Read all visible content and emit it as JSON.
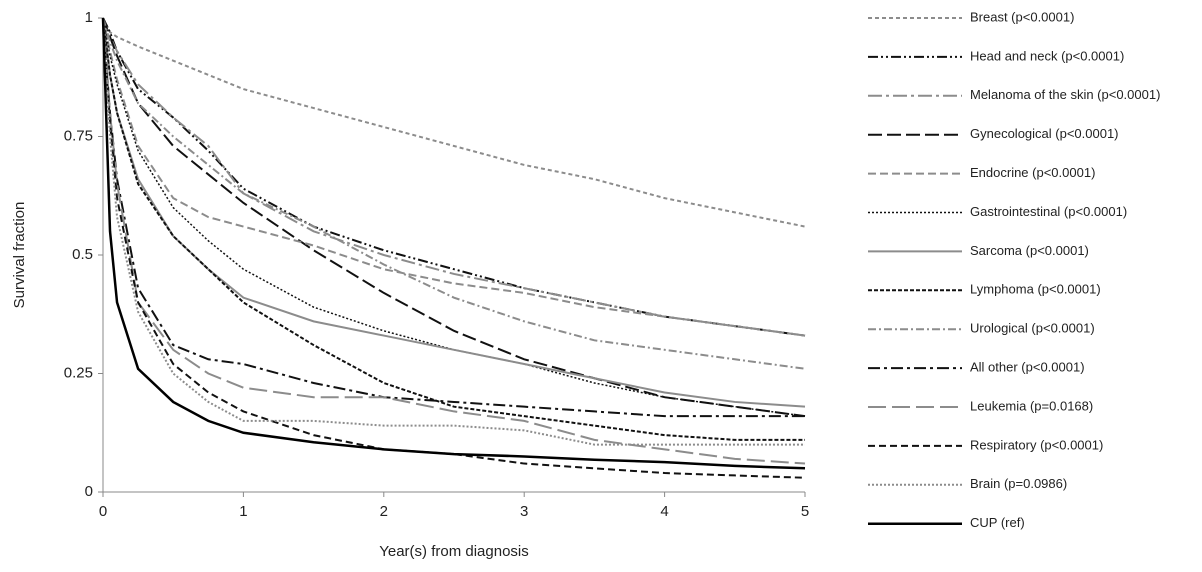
{
  "chart_data": {
    "type": "line",
    "y_label": "Survival fraction",
    "x_label": "Year(s) from diagnosis",
    "xlim": [
      0,
      5
    ],
    "xticks": [
      0,
      1,
      2,
      3,
      4,
      5
    ],
    "ylim": [
      0,
      1
    ],
    "yticks": [
      0,
      0.25,
      0.5,
      0.75,
      1
    ],
    "x": [
      0,
      0.05,
      0.1,
      0.25,
      0.5,
      0.75,
      1,
      1.5,
      2,
      2.5,
      3,
      3.5,
      4,
      4.5,
      5
    ],
    "series": [
      {
        "name": "Breast (p<0.0001)",
        "color": "#8c8c8c",
        "dash": "4 3",
        "width": 2,
        "values": [
          1,
          0.97,
          0.96,
          0.94,
          0.91,
          0.88,
          0.85,
          0.81,
          0.77,
          0.73,
          0.69,
          0.66,
          0.62,
          0.59,
          0.56
        ]
      },
      {
        "name": "Head and neck (p<0.0001)",
        "color": "#111111",
        "dash": "10 3 2 3 2 3",
        "width": 2,
        "values": [
          1,
          0.97,
          0.93,
          0.85,
          0.79,
          0.72,
          0.64,
          0.56,
          0.51,
          0.47,
          0.43,
          0.4,
          0.37,
          0.35,
          0.33
        ]
      },
      {
        "name": "Melanoma of the skin (p<0.0001)",
        "color": "#8c8c8c",
        "dash": "14 4 3 4",
        "width": 2,
        "values": [
          1,
          0.96,
          0.93,
          0.86,
          0.79,
          0.73,
          0.63,
          0.55,
          0.5,
          0.46,
          0.43,
          0.4,
          0.37,
          0.35,
          0.33
        ]
      },
      {
        "name": "Gynecological (p<0.0001)",
        "color": "#111111",
        "dash": "14 5",
        "width": 2,
        "values": [
          1,
          0.96,
          0.92,
          0.82,
          0.73,
          0.67,
          0.61,
          0.51,
          0.42,
          0.34,
          0.28,
          0.24,
          0.2,
          0.18,
          0.16
        ]
      },
      {
        "name": "Endocrine (p<0.0001)",
        "color": "#8c8c8c",
        "dash": "8 4",
        "width": 2,
        "values": [
          1,
          0.93,
          0.87,
          0.73,
          0.62,
          0.58,
          0.56,
          0.52,
          0.47,
          0.44,
          0.42,
          0.39,
          0.37,
          0.35,
          0.33
        ]
      },
      {
        "name": "Gastrointestinal (p<0.0001)",
        "color": "#111111",
        "dash": "2 2",
        "width": 1.5,
        "values": [
          1,
          0.92,
          0.86,
          0.72,
          0.6,
          0.53,
          0.47,
          0.39,
          0.34,
          0.3,
          0.27,
          0.23,
          0.2,
          0.18,
          0.16
        ]
      },
      {
        "name": "Sarcoma (p<0.0001)",
        "color": "#8c8c8c",
        "dash": "none",
        "width": 2,
        "values": [
          1,
          0.88,
          0.8,
          0.66,
          0.54,
          0.47,
          0.41,
          0.36,
          0.33,
          0.3,
          0.27,
          0.24,
          0.21,
          0.19,
          0.18
        ]
      },
      {
        "name": "Lymphoma (p<0.0001)",
        "color": "#111111",
        "dash": "4 2",
        "width": 2,
        "values": [
          1,
          0.88,
          0.8,
          0.65,
          0.54,
          0.47,
          0.4,
          0.31,
          0.23,
          0.18,
          0.16,
          0.14,
          0.12,
          0.11,
          0.11
        ]
      },
      {
        "name": "Urological (p<0.0001)",
        "color": "#8c8c8c",
        "dash": "8 3 2 3",
        "width": 2,
        "values": [
          1,
          0.95,
          0.91,
          0.82,
          0.75,
          0.69,
          0.63,
          0.56,
          0.48,
          0.41,
          0.36,
          0.32,
          0.3,
          0.28,
          0.26
        ]
      },
      {
        "name": "All other (p<0.0001)",
        "color": "#111111",
        "dash": "12 4 3 4",
        "width": 2,
        "values": [
          1,
          0.8,
          0.66,
          0.43,
          0.31,
          0.28,
          0.27,
          0.23,
          0.2,
          0.19,
          0.18,
          0.17,
          0.16,
          0.16,
          0.16
        ]
      },
      {
        "name": "Leukemia (p=0.0168)",
        "color": "#8c8c8c",
        "dash": "18 6",
        "width": 2,
        "values": [
          1,
          0.8,
          0.65,
          0.4,
          0.3,
          0.25,
          0.22,
          0.2,
          0.2,
          0.17,
          0.15,
          0.11,
          0.09,
          0.07,
          0.06
        ]
      },
      {
        "name": "Respiratory (p<0.0001)",
        "color": "#111111",
        "dash": "7 4",
        "width": 2,
        "values": [
          1,
          0.78,
          0.62,
          0.4,
          0.27,
          0.21,
          0.17,
          0.12,
          0.09,
          0.08,
          0.06,
          0.05,
          0.04,
          0.035,
          0.03
        ]
      },
      {
        "name": "Brain (p=0.0986)",
        "color": "#8c8c8c",
        "dash": "2 2",
        "width": 2,
        "values": [
          1,
          0.75,
          0.58,
          0.38,
          0.25,
          0.19,
          0.15,
          0.15,
          0.14,
          0.14,
          0.13,
          0.1,
          0.1,
          0.1,
          0.1
        ]
      },
      {
        "name": "CUP (ref)",
        "color": "#000000",
        "dash": "none",
        "width": 2.5,
        "values": [
          1,
          0.55,
          0.4,
          0.26,
          0.19,
          0.15,
          0.125,
          0.105,
          0.09,
          0.08,
          0.075,
          0.068,
          0.063,
          0.055,
          0.05
        ]
      }
    ]
  }
}
